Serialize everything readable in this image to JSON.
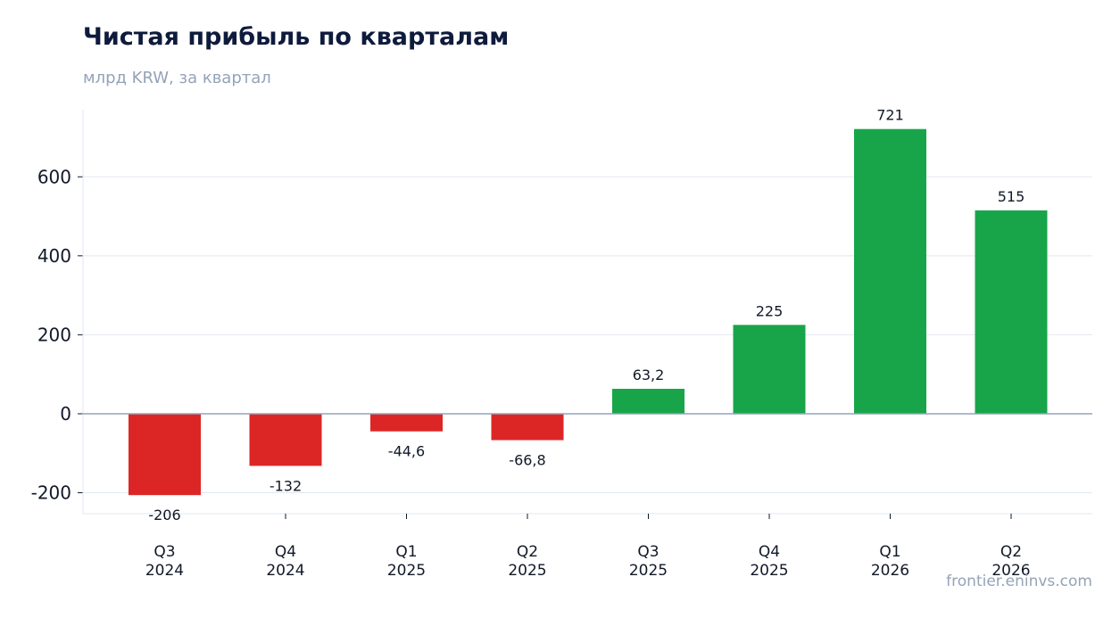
{
  "chart_data": {
    "type": "bar",
    "title": "Чистая прибыль по кварталам",
    "subtitle": "млрд KRW, за квартал",
    "categories": [
      [
        "Q3",
        "2024"
      ],
      [
        "Q4",
        "2024"
      ],
      [
        "Q1",
        "2025"
      ],
      [
        "Q2",
        "2025"
      ],
      [
        "Q3",
        "2025"
      ],
      [
        "Q4",
        "2025"
      ],
      [
        "Q1",
        "2026"
      ],
      [
        "Q2",
        "2026"
      ]
    ],
    "values": [
      -206,
      -132,
      -44.6,
      -66.8,
      63.2,
      225,
      721,
      515
    ],
    "value_labels": [
      "-206",
      "-132",
      "-44,6",
      "-66,8",
      "63,2",
      "225",
      "721",
      "515"
    ],
    "ylim": [
      -253,
      770
    ],
    "yticks": [
      -200,
      0,
      200,
      400,
      600
    ],
    "grid": true,
    "colors": {
      "positive": "#18a54a",
      "negative": "#dc2626",
      "grid": "#e2e8f0",
      "zero_line": "#94a3b8",
      "axis": "#e2e8f0"
    },
    "xlabel": "",
    "ylabel": ""
  },
  "watermark": "frontier.eninvs.com"
}
